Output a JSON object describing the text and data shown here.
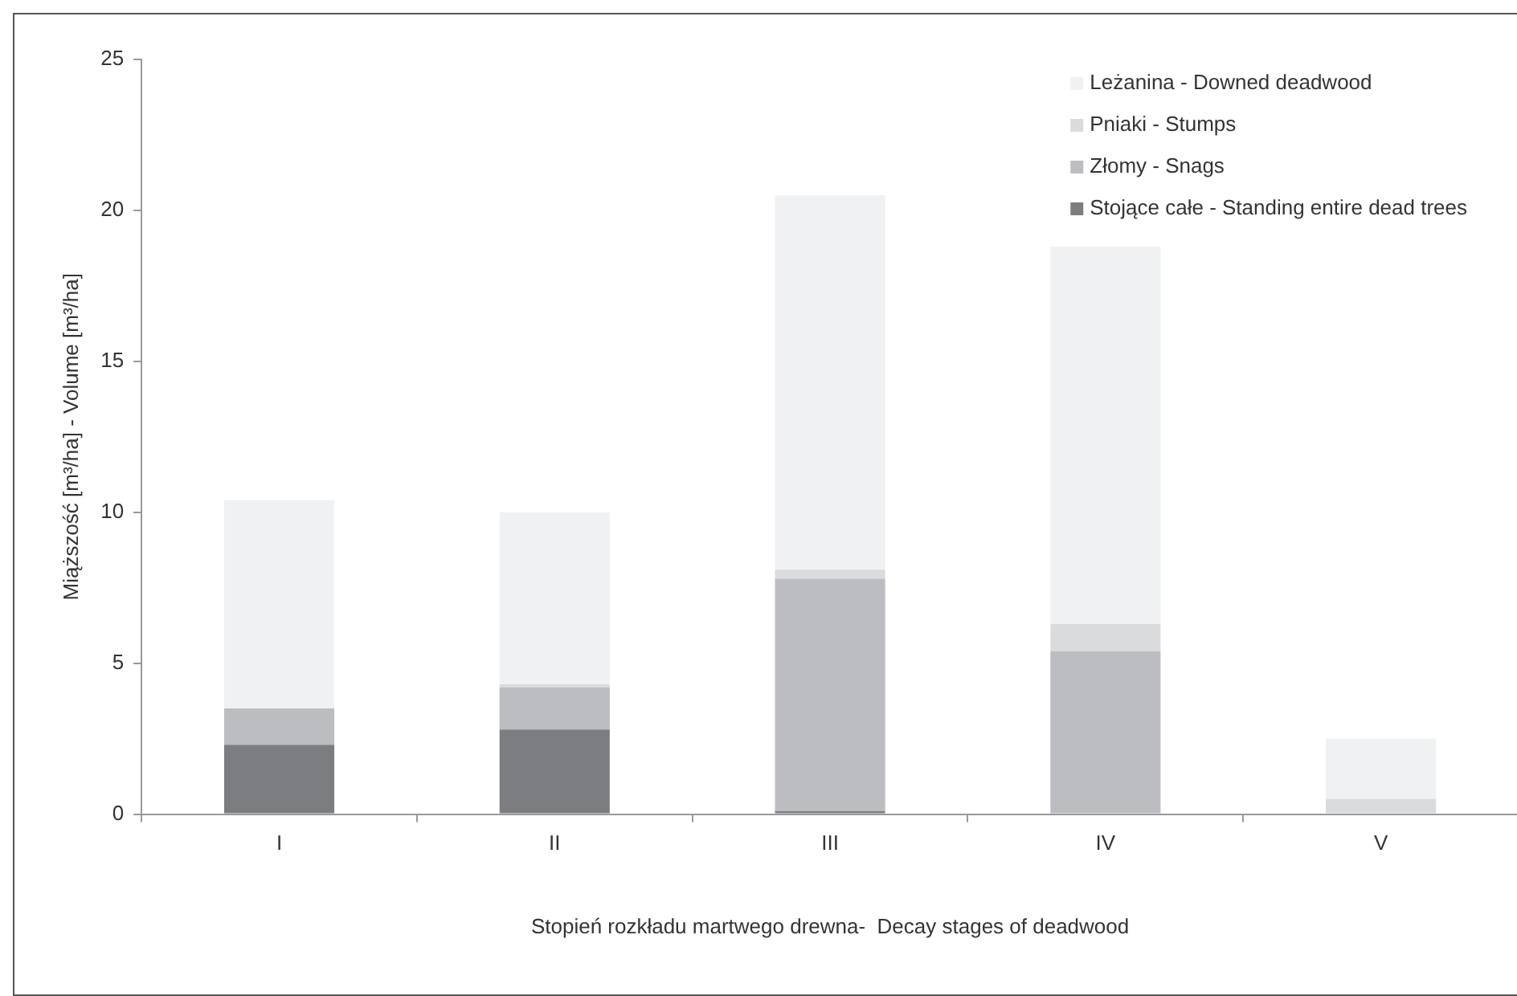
{
  "chart_data": {
    "type": "bar",
    "stacked": true,
    "xlabel": "Stopień rozkładu martwego drewna-  Decay stages of deadwood",
    "ylabel": "Miąższość [m³/ha] - Volume [m³/ha]",
    "categories": [
      "I",
      "II",
      "III",
      "IV",
      "V"
    ],
    "series": [
      {
        "name": "Stojące całe - Standing entire dead trees",
        "color": "#7c7d81",
        "values": [
          2.3,
          2.8,
          0.1,
          0,
          0
        ]
      },
      {
        "name": "Złomy - Snags",
        "color": "#bcbdc1",
        "values": [
          1.2,
          1.4,
          7.7,
          5.4,
          0
        ]
      },
      {
        "name": "Pniaki - Stumps",
        "color": "#dadbdd",
        "values": [
          0,
          0.1,
          0.3,
          0.9,
          0.5
        ]
      },
      {
        "name": "Leżanina - Downed deadwood",
        "color": "#f0f1f3",
        "values": [
          6.9,
          5.7,
          12.4,
          12.5,
          2.0
        ]
      }
    ],
    "ylim": [
      0,
      25
    ],
    "yticks": [
      0,
      5,
      10,
      15,
      20,
      25
    ],
    "legend": "top right"
  }
}
